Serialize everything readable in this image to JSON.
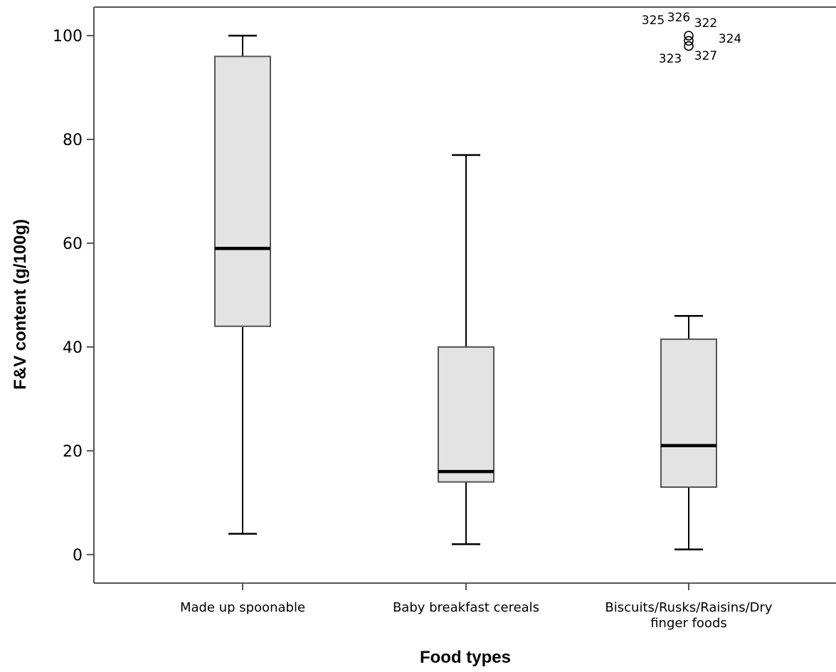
{
  "chart_data": {
    "type": "boxplot",
    "xlabel": "Food types",
    "ylabel": "F&V content (g/100g)",
    "ylim": [
      -5.5,
      105.5
    ],
    "yticks": [
      0,
      20,
      40,
      60,
      80,
      100
    ],
    "grid": false,
    "categories": [
      {
        "lines": [
          "Made up spoonable"
        ]
      },
      {
        "lines": [
          "Baby breakfast cereals"
        ]
      },
      {
        "lines": [
          "Biscuits/Rusks/Raisins/Dry",
          "finger foods"
        ]
      }
    ],
    "boxes": [
      {
        "min": 4,
        "q1": 44,
        "median": 59,
        "q3": 96,
        "max": 100,
        "outliers": []
      },
      {
        "min": 2,
        "q1": 14,
        "median": 16,
        "q3": 40,
        "max": 77,
        "outliers": []
      },
      {
        "min": 1,
        "q1": 13,
        "median": 21,
        "q3": 41.5,
        "max": 46,
        "outliers": [
          {
            "id": "325",
            "value": 100
          },
          {
            "id": "326",
            "value": 100
          },
          {
            "id": "322",
            "value": 100
          },
          {
            "id": "324",
            "value": 99
          },
          {
            "id": "323",
            "value": 98
          },
          {
            "id": "327",
            "value": 98
          }
        ]
      }
    ],
    "colors": {
      "box_fill": "#e3e3e3",
      "stroke": "#000000",
      "frame": "#555555"
    }
  }
}
